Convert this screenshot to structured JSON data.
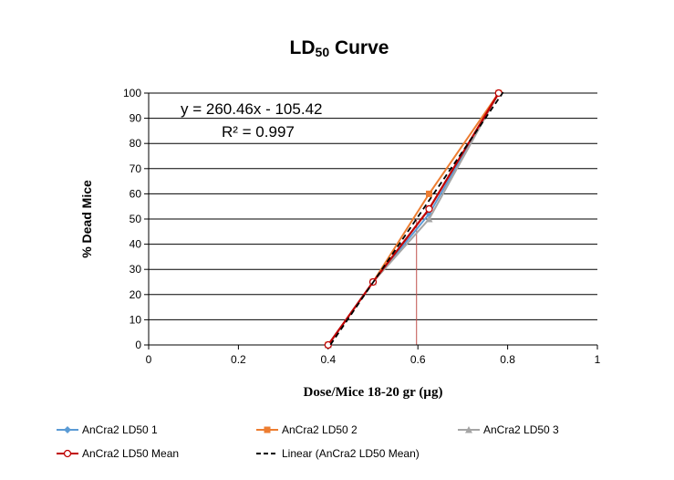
{
  "chart_data": {
    "type": "line",
    "title_main": "LD",
    "title_sub": "50",
    "title_rest": " Curve",
    "xlabel": "Dose/Mice 18-20 gr (µg)",
    "ylabel": "% Dead  Mice",
    "xlim": [
      0,
      1
    ],
    "ylim": [
      0,
      100
    ],
    "x_ticks": [
      0,
      0.2,
      0.4,
      0.6,
      0.8,
      1
    ],
    "x_tick_labels": [
      "0",
      "0.2",
      "0.4",
      "0.6",
      "0.8",
      "1"
    ],
    "y_ticks": [
      0,
      10,
      20,
      30,
      40,
      50,
      60,
      70,
      80,
      90,
      100
    ],
    "y_tick_labels": [
      "0",
      "10",
      "20",
      "30",
      "40",
      "50",
      "60",
      "70",
      "80",
      "90",
      "100"
    ],
    "grid": "horizontal",
    "series": [
      {
        "name": "AnCra2 LD50  1",
        "color": "#5b9bd5",
        "marker": "diamond",
        "x": [
          0.4,
          0.5,
          0.625,
          0.78
        ],
        "y": [
          0,
          25,
          52,
          100
        ]
      },
      {
        "name": "AnCra2 LD50  2",
        "color": "#ed7d31",
        "marker": "square",
        "x": [
          0.4,
          0.5,
          0.625,
          0.78
        ],
        "y": [
          0,
          25,
          60,
          100
        ]
      },
      {
        "name": "AnCra2 LD50  3",
        "color": "#a5a5a5",
        "marker": "triangle",
        "x": [
          0.4,
          0.5,
          0.625,
          0.78
        ],
        "y": [
          0,
          25,
          50,
          100
        ]
      },
      {
        "name": "AnCra2 LD50  Mean",
        "color": "#c00000",
        "marker": "circle-open",
        "x": [
          0.4,
          0.5,
          0.625,
          0.78
        ],
        "y": [
          0,
          25,
          54,
          100
        ]
      }
    ],
    "trendline": {
      "name": "Linear (AnCra2 LD50  Mean)",
      "color": "#000000",
      "slope": 260.46,
      "intercept": -105.42,
      "x": [
        0.405,
        0.79
      ]
    },
    "ld50_marker": {
      "x": 0.597,
      "y": 50,
      "color": "#c0504d"
    },
    "annotations": [
      "y = 260.46x - 105.42",
      "R² = 0.997"
    ],
    "legend": "bottom"
  }
}
